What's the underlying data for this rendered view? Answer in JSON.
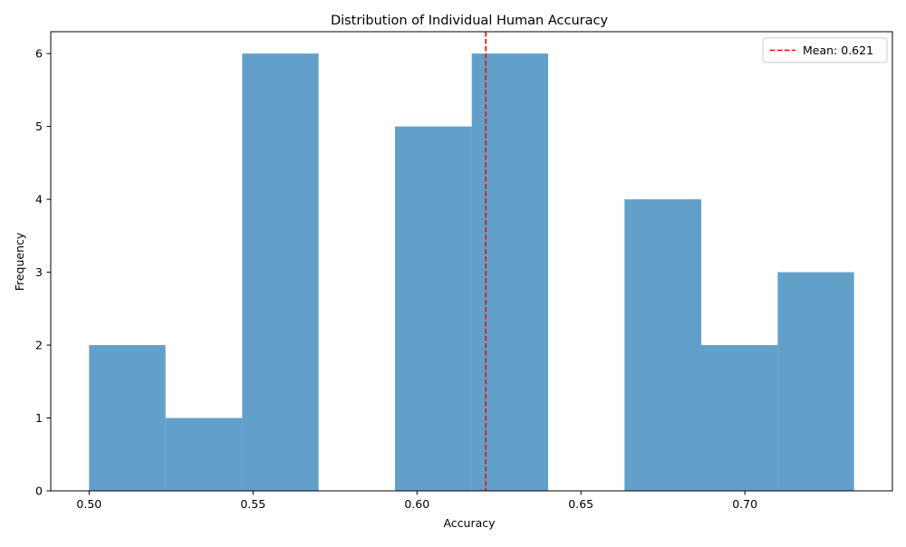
{
  "chart_data": {
    "type": "histogram",
    "title": "Distribution of Individual Human Accuracy",
    "xlabel": "Accuracy",
    "ylabel": "Frequency",
    "xlim": [
      0.4883,
      0.745
    ],
    "ylim": [
      0,
      6.3
    ],
    "xticks": [
      0.5,
      0.55,
      0.6,
      0.65,
      0.7
    ],
    "xtick_labels": [
      "0.50",
      "0.55",
      "0.60",
      "0.65",
      "0.70"
    ],
    "yticks": [
      0,
      1,
      2,
      3,
      4,
      5,
      6
    ],
    "ytick_labels": [
      "0",
      "1",
      "2",
      "3",
      "4",
      "5",
      "6"
    ],
    "bins": [
      {
        "x0": 0.5,
        "x1": 0.5233,
        "count": 2
      },
      {
        "x0": 0.5233,
        "x1": 0.5467,
        "count": 1
      },
      {
        "x0": 0.5467,
        "x1": 0.57,
        "count": 6
      },
      {
        "x0": 0.57,
        "x1": 0.5933,
        "count": 0
      },
      {
        "x0": 0.5933,
        "x1": 0.6167,
        "count": 5
      },
      {
        "x0": 0.6167,
        "x1": 0.64,
        "count": 6
      },
      {
        "x0": 0.64,
        "x1": 0.6633,
        "count": 0
      },
      {
        "x0": 0.6633,
        "x1": 0.6867,
        "count": 4
      },
      {
        "x0": 0.6867,
        "x1": 0.71,
        "count": 2
      },
      {
        "x0": 0.71,
        "x1": 0.7333,
        "count": 3
      }
    ],
    "bar_color": "#1f77b4",
    "bar_alpha": 0.7,
    "mean_line": {
      "value": 0.621,
      "label": "Mean: 0.621",
      "color": "#ff0000",
      "style": "dashed"
    },
    "legend_position": "upper right",
    "grid": false
  }
}
